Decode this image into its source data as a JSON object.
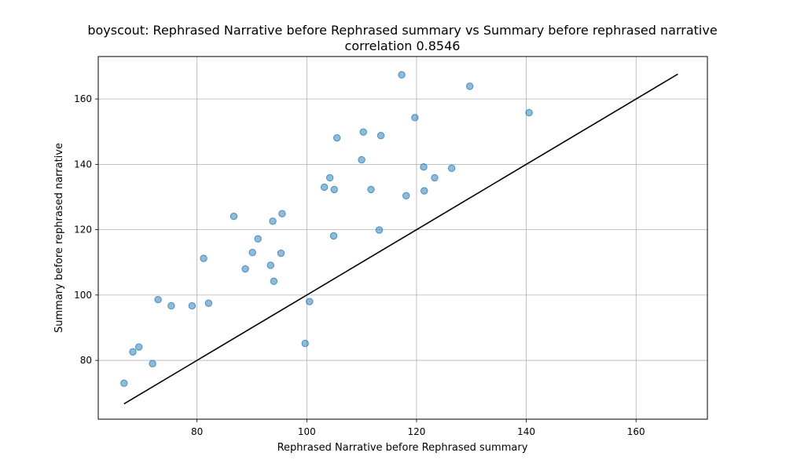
{
  "chart_data": {
    "type": "scatter",
    "title": "boyscout:  Rephrased Narrative before Rephrased summary vs Summary before rephrased narrative",
    "subtitle": "correlation 0.8546",
    "xlabel": "Rephrased Narrative before Rephrased summary",
    "ylabel": "Summary before rephrased narrative",
    "xlim": [
      62,
      173
    ],
    "ylim": [
      62,
      173
    ],
    "xticks": [
      80,
      100,
      120,
      140,
      160
    ],
    "yticks": [
      80,
      100,
      120,
      140,
      160
    ],
    "grid": true,
    "point_color": "#1f77b4",
    "line_color": "#000000",
    "reference_line": {
      "x": [
        66.7,
        167.6
      ],
      "y": [
        66.7,
        167.6
      ]
    },
    "series": [
      {
        "x": [
          66.7,
          68.3,
          69.4,
          71.9,
          72.9,
          75.3,
          79.1,
          81.2,
          82.1,
          86.7,
          88.8,
          90.1,
          91.1,
          93.4,
          93.8,
          94.0,
          95.3,
          95.5,
          99.7,
          100.5,
          103.2,
          104.2,
          104.9,
          105.0,
          105.5,
          110.0,
          110.3,
          111.7,
          113.2,
          113.5,
          117.3,
          118.1,
          119.7,
          121.3,
          121.4,
          123.3,
          126.4,
          129.7,
          140.5
        ],
        "y": [
          73.0,
          82.6,
          84.1,
          79.0,
          98.6,
          96.7,
          96.7,
          111.2,
          97.5,
          124.1,
          108.0,
          113.0,
          117.2,
          109.1,
          122.6,
          104.2,
          112.8,
          124.9,
          85.2,
          98.0,
          133.0,
          135.9,
          118.1,
          132.3,
          148.1,
          141.4,
          149.9,
          132.3,
          119.9,
          148.8,
          167.4,
          130.4,
          154.3,
          139.2,
          131.9,
          135.9,
          138.8,
          163.9,
          155.8
        ]
      }
    ]
  }
}
